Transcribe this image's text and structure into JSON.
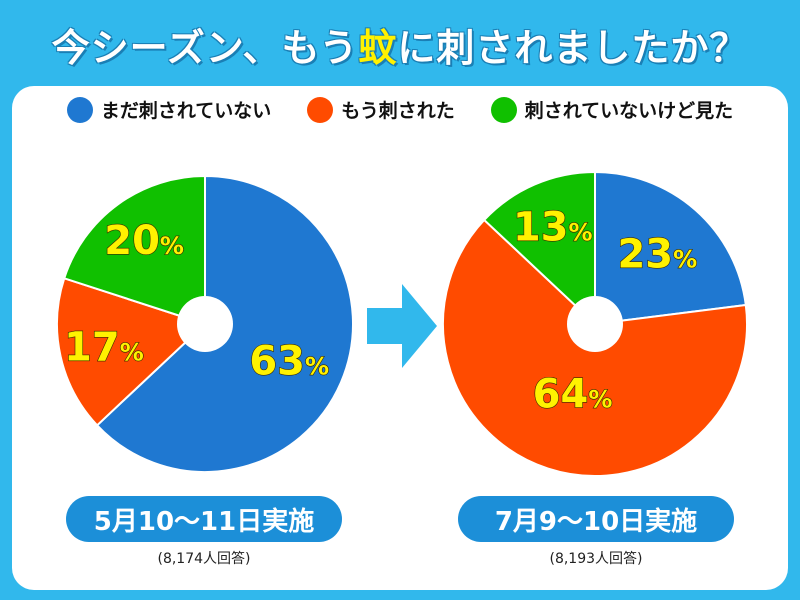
{
  "title": {
    "before": "今シーズン、もう",
    "highlight": "蚊",
    "after": "に刺されましたか？"
  },
  "colors": {
    "not_bitten": "#1f78d1",
    "bitten": "#ff4b00",
    "seen": "#10c000",
    "label_text": "#fff200",
    "background": "#31b8ec",
    "pill": "#1c8fd8"
  },
  "legend": [
    {
      "label": "まだ刺されていない",
      "color": "#1f78d1"
    },
    {
      "label": "もう刺された",
      "color": "#ff4b00"
    },
    {
      "label": "刺されていないけど見た",
      "color": "#10c000"
    }
  ],
  "chart_data": [
    {
      "type": "pie",
      "title": "5月10〜11日実施",
      "respondents": "(8,174人回答)",
      "start_angle_deg": 0,
      "direction": "clockwise",
      "slices": [
        {
          "name": "まだ刺されていない",
          "value": 63,
          "label": "63",
          "color": "#1f78d1"
        },
        {
          "name": "もう刺された",
          "value": 17,
          "label": "17",
          "color": "#ff4b00"
        },
        {
          "name": "刺されていないけど見た",
          "value": 20,
          "label": "20",
          "color": "#10c000"
        }
      ],
      "unit": "%"
    },
    {
      "type": "pie",
      "title": "7月9〜10日実施",
      "respondents": "(8,193人回答)",
      "start_angle_deg": 0,
      "direction": "clockwise",
      "slices": [
        {
          "name": "まだ刺されていない",
          "value": 23,
          "label": "23",
          "color": "#1f78d1"
        },
        {
          "name": "もう刺された",
          "value": 64,
          "label": "64",
          "color": "#ff4b00"
        },
        {
          "name": "刺されていないけど見た",
          "value": 13,
          "label": "13",
          "color": "#10c000"
        }
      ],
      "unit": "%"
    }
  ]
}
